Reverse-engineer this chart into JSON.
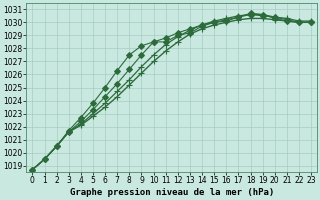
{
  "title": "Graphe pression niveau de la mer (hPa)",
  "bg_color": "#c8e8e0",
  "grid_color": "#a8ccc4",
  "line_color": "#2d6b3c",
  "xlim_min": -0.5,
  "xlim_max": 23.5,
  "ylim_min": 1018.5,
  "ylim_max": 1031.5,
  "yticks": [
    1019,
    1020,
    1021,
    1022,
    1023,
    1024,
    1025,
    1026,
    1027,
    1028,
    1029,
    1030,
    1031
  ],
  "xticks": [
    0,
    1,
    2,
    3,
    4,
    5,
    6,
    7,
    8,
    9,
    10,
    11,
    12,
    13,
    14,
    15,
    16,
    17,
    18,
    19,
    20,
    21,
    22,
    23
  ],
  "series": [
    [
      1018.7,
      1019.5,
      1020.5,
      1021.6,
      1022.1,
      1022.8,
      1023.5,
      1024.3,
      1025.2,
      1026.1,
      1027.0,
      1027.8,
      1028.5,
      1029.1,
      1029.5,
      1029.8,
      1030.0,
      1030.2,
      1030.3,
      1030.3,
      1030.2,
      1030.1,
      1030.0,
      1030.0
    ],
    [
      1018.7,
      1019.5,
      1020.5,
      1021.6,
      1022.2,
      1023.0,
      1023.8,
      1024.7,
      1025.6,
      1026.6,
      1027.5,
      1028.3,
      1028.9,
      1029.4,
      1029.8,
      1030.1,
      1030.3,
      1030.5,
      1030.6,
      1030.6,
      1030.4,
      1030.3,
      1030.1,
      1030.1
    ],
    [
      1018.7,
      1019.5,
      1020.5,
      1021.6,
      1022.4,
      1023.3,
      1024.3,
      1025.3,
      1026.4,
      1027.5,
      1028.5,
      1028.8,
      1029.2,
      1029.5,
      1029.8,
      1030.0,
      1030.2,
      1030.4,
      1030.6,
      1030.5,
      1030.4,
      1030.2,
      1030.0,
      1030.0
    ],
    [
      1018.7,
      1019.5,
      1020.5,
      1021.7,
      1022.7,
      1023.8,
      1025.0,
      1026.3,
      1027.5,
      1028.2,
      1028.5,
      1028.5,
      1029.0,
      1029.2,
      1029.7,
      1030.0,
      1030.1,
      1030.4,
      1030.7,
      1030.6,
      1030.3,
      1030.1,
      1030.0,
      1030.0
    ]
  ],
  "markers": [
    "+",
    "+",
    "D",
    "D"
  ],
  "markersizes": [
    5,
    4,
    3,
    3
  ],
  "linewidths": [
    1.0,
    0.9,
    0.8,
    0.8
  ],
  "title_fontsize": 6.5,
  "tick_fontsize": 5.5
}
